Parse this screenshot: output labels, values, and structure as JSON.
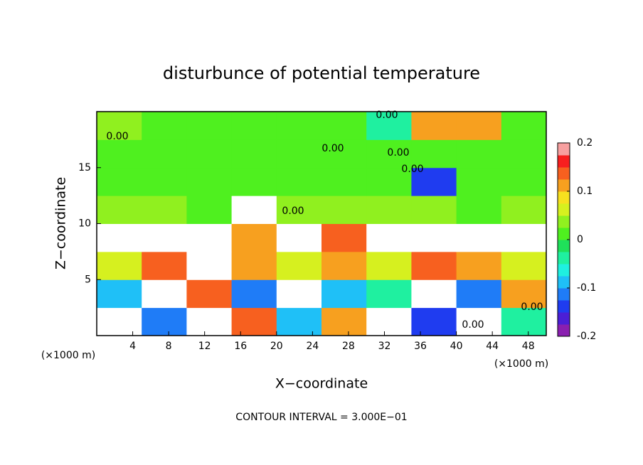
{
  "chart_data": {
    "type": "heatmap",
    "title": "disturbunce of potential temperature",
    "xlabel": "X−coordinate",
    "ylabel": "Z−coordinate",
    "xunit": "(×1000 m)",
    "xunit_right": "(×1000 m)",
    "footnote": "CONTOUR INTERVAL = 3.000E−01",
    "annotations": [
      "0.00",
      "0.00",
      "0.00",
      "0.00",
      "0.00",
      "0.00",
      "0.00",
      "0.00"
    ],
    "xlim": [
      0,
      50
    ],
    "ylim": [
      0,
      20
    ],
    "xticks": [
      4,
      8,
      12,
      16,
      20,
      24,
      28,
      32,
      36,
      40,
      44,
      48
    ],
    "yticks": [
      5,
      10,
      15
    ],
    "x": [
      2.5,
      7.5,
      12.5,
      17.5,
      22.5,
      27.5,
      32.5,
      37.5,
      42.5,
      47.5
    ],
    "y": [
      1.25,
      3.75,
      6.25,
      8.75,
      11.25,
      13.75,
      16.25,
      18.75
    ],
    "z": [
      [
        0.25,
        -0.12,
        0.25,
        0.15,
        -0.1,
        0.1,
        0.25,
        -0.15,
        0.25,
        -0.05
      ],
      [
        -0.1,
        0.25,
        0.15,
        -0.12,
        0.22,
        -0.1,
        -0.05,
        0.25,
        -0.12,
        0.1
      ],
      [
        0.05,
        0.15,
        0.25,
        0.1,
        0.05,
        0.1,
        0.05,
        0.15,
        0.1,
        0.05
      ],
      [
        0.25,
        0.25,
        0.25,
        0.1,
        0.25,
        0.15,
        0.25,
        0.25,
        0.25,
        0.25
      ],
      [
        0.03,
        0.03,
        0.02,
        0.25,
        0.04,
        0.03,
        0.03,
        0.03,
        0.02,
        0.03
      ],
      [
        0.02,
        0.02,
        0.02,
        0.02,
        0.02,
        0.02,
        0.02,
        -0.15,
        0.02,
        0.02
      ],
      [
        0.01,
        0.01,
        0.01,
        0.01,
        0.01,
        0.01,
        0.01,
        0.01,
        0.01,
        0.01
      ],
      [
        0.03,
        0.01,
        0.01,
        0.01,
        0.01,
        0.01,
        -0.05,
        0.12,
        0.1,
        0.01
      ]
    ],
    "clim": [
      -0.2,
      0.2
    ],
    "cticks": [
      -0.2,
      -0.1,
      0,
      0.1,
      0.2
    ],
    "colors": [
      "#8a1fb0",
      "#4b1fd6",
      "#1f3cf0",
      "#1f7cf7",
      "#1fc0f7",
      "#1ff0e0",
      "#1ff0a0",
      "#1fe05a",
      "#4ff01f",
      "#90f01f",
      "#d6f01f",
      "#f7e01f",
      "#f7a01f",
      "#f7601f",
      "#f71f1f",
      "#f7a0a0"
    ]
  }
}
